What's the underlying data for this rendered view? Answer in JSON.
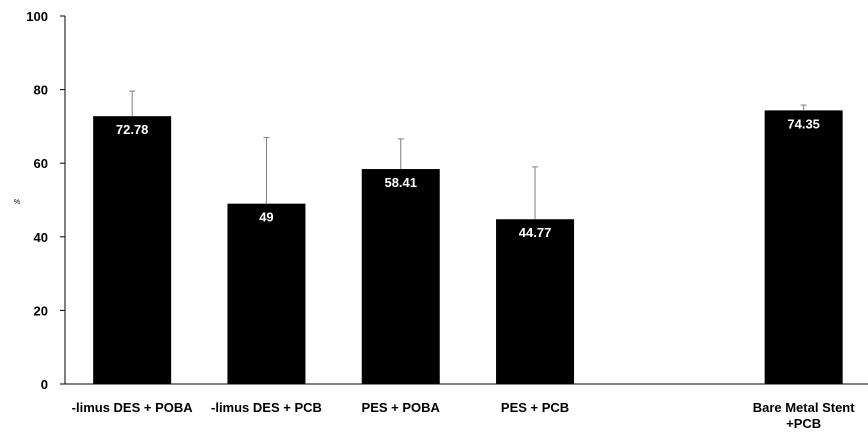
{
  "chart_data": {
    "type": "bar",
    "ylabel": "%",
    "ylim": [
      0,
      100
    ],
    "yticks": [
      0,
      20,
      40,
      60,
      80,
      100
    ],
    "grid": false,
    "legend": "none",
    "bar_color": "#000000",
    "error_bar_color": "#7f7f7f",
    "categories": [
      "-limus DES + POBA",
      "-limus DES + PCB",
      "PES + POBA",
      "PES + PCB",
      "",
      "Bare Metal Stent\n+PCB"
    ],
    "values": [
      72.78,
      49,
      58.41,
      44.77,
      null,
      74.35
    ],
    "data_labels": [
      "72.78",
      "49",
      "58.41",
      "44.77",
      "",
      "74.35"
    ],
    "error_upper": [
      79.6,
      67.0,
      66.6,
      59.0,
      null,
      75.8
    ]
  }
}
